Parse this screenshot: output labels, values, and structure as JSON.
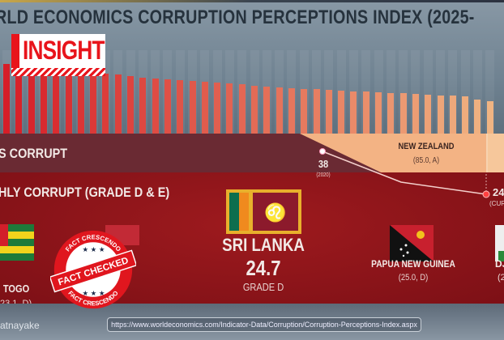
{
  "title": "RLD ECONOMICS CORRUPTION PERCEPTIONS INDEX (2025-",
  "logo": "INSIGHT",
  "bands": {
    "less_corrupt": "S CORRUPT",
    "highly_corrupt": "HLY CORRUPT (GRADE D & E)"
  },
  "new_zealand": {
    "name": "NEW ZEALAND",
    "detail": "(85.0, A)"
  },
  "trend": {
    "start_value": "38",
    "start_label": "(2020)",
    "current_value": "24",
    "current_label": "(CUR"
  },
  "countries": [
    {
      "name": "TOGO",
      "detail": "23.1, D)"
    },
    {
      "name": "SRI LANKA",
      "score": "24.7",
      "grade": "GRADE D"
    },
    {
      "name": "PAPUA NEW GUINEA",
      "detail": "(25.0, D)"
    },
    {
      "name": "DJ",
      "detail": "(2"
    }
  ],
  "credit": "atnayake",
  "source_url": "https://www.worldeconomics.com/Indicator-Data/Corruption/Corruption-Perceptions-Index.aspx",
  "stamp": {
    "top": "FACT CRESCENDO",
    "middle": "FACT CHECKED",
    "bottom": "FACT CRESCENDO"
  },
  "chart_data": {
    "type": "bar",
    "title": "Corruption Perceptions Index (decorative ranking bars)",
    "values": [
      85,
      82,
      81,
      80,
      79,
      78,
      77,
      76,
      73,
      72,
      70,
      68,
      67,
      66,
      65,
      64,
      63,
      62,
      61,
      60,
      58,
      57,
      56,
      55,
      54,
      54,
      53,
      52,
      51,
      51,
      50,
      49,
      49,
      48,
      47,
      46,
      46,
      45,
      42,
      40
    ]
  }
}
